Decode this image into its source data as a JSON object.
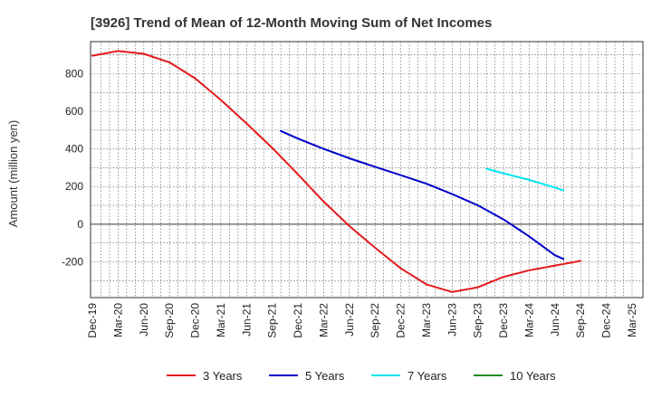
{
  "chart_data": {
    "type": "line",
    "title": "[3926]  Trend of Mean of 12-Month Moving Sum of Net Incomes",
    "ylabel": "Amount (million yen)",
    "xlabel": "",
    "ylim": [
      -390,
      970
    ],
    "yticks": [
      -200,
      0,
      200,
      400,
      600,
      800
    ],
    "x_tick_labels": [
      "Dec-19",
      "Mar-20",
      "Jun-20",
      "Sep-20",
      "Dec-20",
      "Mar-21",
      "Jun-21",
      "Sep-21",
      "Dec-21",
      "Mar-22",
      "Jun-22",
      "Sep-22",
      "Dec-22",
      "Mar-23",
      "Jun-23",
      "Sep-23",
      "Dec-23",
      "Mar-24",
      "Jun-24",
      "Sep-24",
      "Dec-24",
      "Mar-25"
    ],
    "grid": true,
    "legend_position": "bottom",
    "series": [
      {
        "name": "3 Years",
        "color": "#e41a1c",
        "points": [
          [
            0,
            895
          ],
          [
            1,
            920
          ],
          [
            2,
            905
          ],
          [
            3,
            860
          ],
          [
            4,
            775
          ],
          [
            5,
            660
          ],
          [
            6,
            535
          ],
          [
            7,
            405
          ],
          [
            8,
            265
          ],
          [
            9,
            120
          ],
          [
            10,
            -10
          ],
          [
            11,
            -125
          ],
          [
            12,
            -235
          ],
          [
            13,
            -320
          ],
          [
            14,
            -360
          ],
          [
            15,
            -335
          ],
          [
            16,
            -280
          ],
          [
            17,
            -245
          ],
          [
            18,
            -220
          ],
          [
            19,
            -195
          ]
        ]
      },
      {
        "name": "5 Years",
        "color": "#0000cc",
        "points": [
          [
            7.33,
            495
          ],
          [
            8,
            455
          ],
          [
            9,
            400
          ],
          [
            10,
            350
          ],
          [
            11,
            305
          ],
          [
            12,
            260
          ],
          [
            13,
            215
          ],
          [
            14,
            160
          ],
          [
            15,
            100
          ],
          [
            16,
            25
          ],
          [
            17,
            -65
          ],
          [
            18,
            -165
          ],
          [
            18.33,
            -185
          ]
        ]
      },
      {
        "name": "7 Years",
        "color": "#00e5ee",
        "points": [
          [
            15.33,
            295
          ],
          [
            16,
            270
          ],
          [
            17,
            235
          ],
          [
            18,
            195
          ],
          [
            18.33,
            180
          ]
        ]
      },
      {
        "name": "10 Years",
        "color": "#228b22",
        "points": []
      }
    ]
  }
}
